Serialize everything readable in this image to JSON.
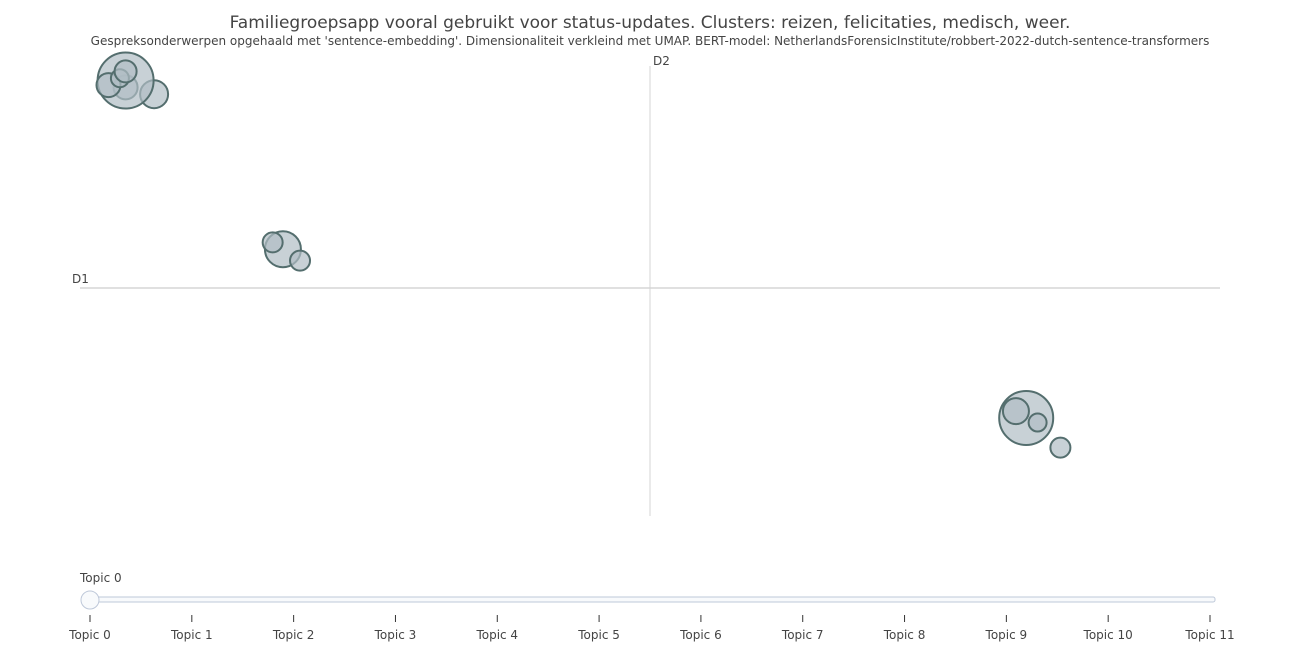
{
  "title": "Familiegroepsapp vooral gebruikt voor status-updates. Clusters: reizen, felicitaties, medisch, weer.",
  "subtitle": "Gespreksonderwerpen opgehaald met 'sentence-embedding'. Dimensionaliteit verkleind met UMAP. BERT-model: NetherlandsForensicInstitute/robbert-2022-dutch-sentence-transformers",
  "colors": {
    "bubble_fill": "#B0BEC5",
    "bubble_stroke": "#546E6E",
    "axis": "#d5d5d5",
    "slider_track": "#f8fafc",
    "slider_border": "#bec8d9",
    "text": "#444444"
  },
  "chart_data": {
    "type": "scatter",
    "xlabel": "D1",
    "ylabel": "D2",
    "xlim": [
      0,
      100
    ],
    "ylim": [
      0,
      100
    ],
    "grid": false,
    "points": [
      {
        "x": 4.0,
        "y": 94.0,
        "size": 12
      },
      {
        "x": 6.5,
        "y": 92.5,
        "size": 14
      },
      {
        "x": 4.0,
        "y": 95.5,
        "size": 28
      },
      {
        "x": 2.5,
        "y": 94.5,
        "size": 12
      },
      {
        "x": 3.5,
        "y": 96.0,
        "size": 9
      },
      {
        "x": 4.0,
        "y": 97.5,
        "size": 11
      },
      {
        "x": 17.8,
        "y": 58.5,
        "size": 18
      },
      {
        "x": 19.3,
        "y": 56.0,
        "size": 10
      },
      {
        "x": 16.9,
        "y": 60.0,
        "size": 10
      },
      {
        "x": 83.0,
        "y": 21.5,
        "size": 27
      },
      {
        "x": 82.1,
        "y": 23.0,
        "size": 13
      },
      {
        "x": 84.0,
        "y": 20.5,
        "size": 9
      },
      {
        "x": 86.0,
        "y": 15.0,
        "size": 10
      }
    ]
  },
  "slider": {
    "current_label": "Topic 0",
    "value_index": 0,
    "steps": [
      "Topic 0",
      "Topic 1",
      "Topic 2",
      "Topic 3",
      "Topic 4",
      "Topic 5",
      "Topic 6",
      "Topic 7",
      "Topic 8",
      "Topic 9",
      "Topic 10",
      "Topic 11"
    ]
  }
}
